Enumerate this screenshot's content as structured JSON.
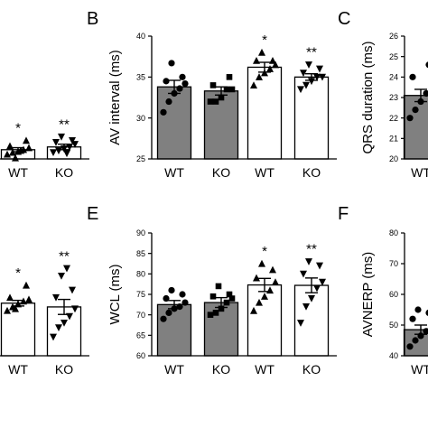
{
  "panel_letters": [
    "B",
    "C",
    "E",
    "F"
  ],
  "significance_markers": [
    "*",
    "**"
  ],
  "chart_data": [
    {
      "id": "A_partial",
      "type": "bar",
      "title": "",
      "ylabel": "",
      "ylim": [
        0,
        1
      ],
      "categories": [
        "WT",
        "KO"
      ],
      "fills": [
        "#ffffff",
        "#ffffff"
      ],
      "marker_shapes": [
        "triangle",
        "triangle-down"
      ],
      "values": [
        0.1,
        0.13
      ],
      "errors": [
        0.022,
        0.03
      ],
      "significance": [
        "*",
        "**"
      ],
      "points": [
        [
          0.05,
          0.07,
          0.08,
          0.1,
          0.12,
          0.14,
          0.2,
          0.01,
          0.09
        ],
        [
          0.07,
          0.09,
          0.11,
          0.13,
          0.16,
          0.18,
          0.2,
          0.24,
          0.06
        ]
      ]
    },
    {
      "id": "B",
      "type": "bar",
      "title": "",
      "ylabel": "AV interval (ms)",
      "ylim": [
        25,
        40
      ],
      "yticks": [
        "25",
        "30",
        "35",
        "40"
      ],
      "categories": [
        "WT",
        "KO",
        "WT",
        "KO"
      ],
      "fills": [
        "#808080",
        "#808080",
        "#ffffff",
        "#ffffff"
      ],
      "marker_shapes": [
        "circle",
        "square",
        "triangle",
        "triangle-down"
      ],
      "values": [
        33.8,
        33.3,
        36.2,
        35.0
      ],
      "errors": [
        0.8,
        0.5,
        0.6,
        0.4
      ],
      "significance": [
        "",
        "",
        "*",
        "**"
      ],
      "points": [
        [
          30.7,
          32.0,
          33.0,
          33.6,
          34.2,
          34.5,
          35.0,
          36.7
        ],
        [
          32.0,
          32.0,
          32.5,
          33.5,
          33.5,
          34.0,
          35.0
        ],
        [
          34.0,
          35.0,
          35.5,
          36.0,
          36.5,
          37.0,
          37.0,
          38.0
        ],
        [
          33.5,
          34.0,
          34.5,
          35.0,
          35.0,
          35.5,
          36.0,
          36.5
        ]
      ]
    },
    {
      "id": "C_partial",
      "type": "bar",
      "title": "",
      "ylabel": "QRS duration (ms)",
      "ylim": [
        20,
        26
      ],
      "yticks": [
        "20",
        "21",
        "22",
        "23",
        "24",
        "25",
        "26"
      ],
      "categories": [
        "WT"
      ],
      "fills": [
        "#808080"
      ],
      "marker_shapes": [
        "circle"
      ],
      "values": [
        23.1
      ],
      "errors": [
        0.3
      ],
      "significance": [
        ""
      ],
      "points": [
        [
          22.0,
          22.4,
          22.8,
          23.2,
          23.6,
          24.0,
          24.6
        ]
      ]
    },
    {
      "id": "D_partial",
      "type": "bar",
      "title": "",
      "ylabel": "",
      "ylim": [
        0,
        1
      ],
      "categories": [
        "WT",
        "KO"
      ],
      "fills": [
        "#ffffff",
        "#ffffff"
      ],
      "marker_shapes": [
        "triangle",
        "triangle-down"
      ],
      "values": [
        0.56,
        0.52
      ],
      "errors": [
        0.03,
        0.08
      ],
      "significance": [
        "*",
        "**"
      ],
      "points": [
        [
          0.48,
          0.52,
          0.55,
          0.58,
          0.6,
          0.62,
          0.75,
          0.5
        ],
        [
          0.2,
          0.3,
          0.35,
          0.42,
          0.5,
          0.62,
          0.7,
          0.85,
          0.93
        ]
      ]
    },
    {
      "id": "E",
      "type": "bar",
      "title": "",
      "ylabel": "WCL (ms)",
      "ylim": [
        60,
        90
      ],
      "yticks": [
        "60",
        "65",
        "70",
        "75",
        "80",
        "85",
        "90"
      ],
      "categories": [
        "WT",
        "KO",
        "WT",
        "KO"
      ],
      "fills": [
        "#808080",
        "#808080",
        "#ffffff",
        "#ffffff"
      ],
      "marker_shapes": [
        "circle",
        "square",
        "triangle",
        "triangle-down"
      ],
      "values": [
        72.5,
        73.0,
        77.3,
        77.2
      ],
      "errors": [
        1.0,
        1.2,
        1.6,
        1.8
      ],
      "significance": [
        "",
        "",
        "*",
        "**"
      ],
      "points": [
        [
          69.0,
          70.5,
          71.5,
          72.0,
          73.0,
          74.0,
          75.0,
          76.0
        ],
        [
          70.0,
          70.5,
          71.5,
          73.0,
          74.0,
          74.5,
          75.0,
          77.0
        ],
        [
          71.0,
          73.0,
          74.5,
          76.0,
          78.0,
          79.0,
          81.0,
          82.5
        ],
        [
          68.0,
          72.0,
          74.0,
          76.5,
          78.0,
          80.0,
          82.0,
          83.0
        ]
      ]
    },
    {
      "id": "F_partial",
      "type": "bar",
      "title": "",
      "ylabel": "AVNERP (ms)",
      "ylim": [
        40,
        80
      ],
      "yticks": [
        "40",
        "50",
        "60",
        "70",
        "80"
      ],
      "categories": [
        "WT"
      ],
      "fills": [
        "#808080"
      ],
      "marker_shapes": [
        "circle"
      ],
      "values": [
        48.5
      ],
      "errors": [
        1.5
      ],
      "significance": [
        ""
      ],
      "points": [
        [
          43.0,
          45.0,
          46.5,
          48.0,
          50.0,
          52.0,
          54.0,
          55.0
        ]
      ]
    }
  ]
}
